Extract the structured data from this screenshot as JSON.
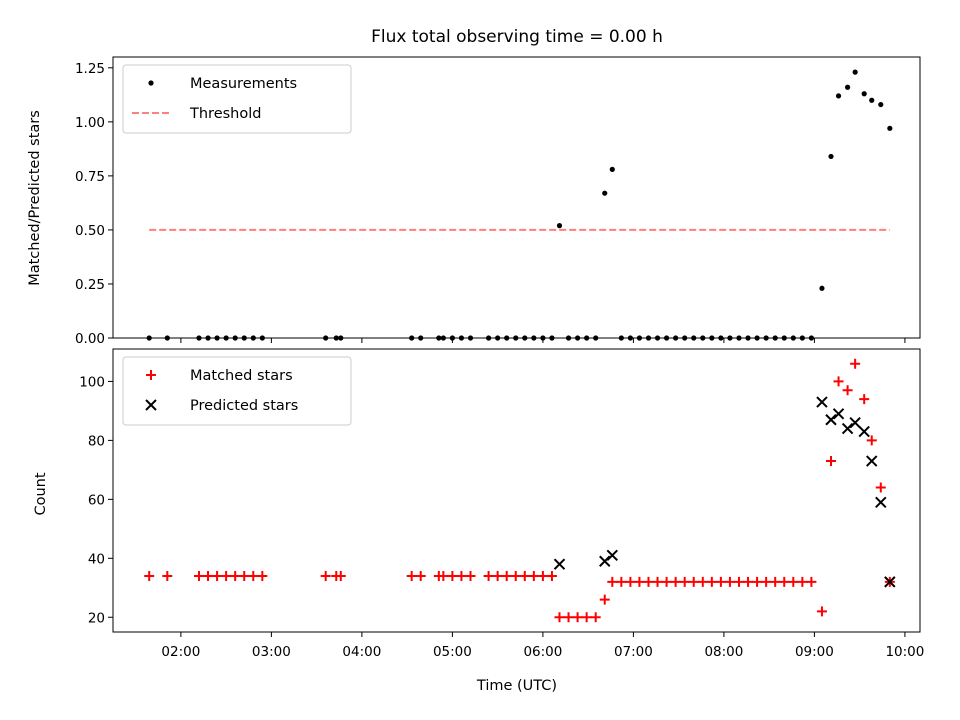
{
  "chart_data": [
    {
      "type": "scatter",
      "title": "Flux total observing time = 0.00 h",
      "xlabel": "",
      "ylabel": "Matched/Predicted stars",
      "x_unit": "time (UTC)",
      "xlim": [
        "01:15",
        "10:10"
      ],
      "ylim": [
        0,
        1.3
      ],
      "yticks": [
        0.0,
        0.25,
        0.5,
        0.75,
        1.0,
        1.25
      ],
      "ytick_labels": [
        "0.00",
        "0.25",
        "0.50",
        "0.75",
        "1.00",
        "1.25"
      ],
      "xticks": [
        "02:00",
        "03:00",
        "04:00",
        "05:00",
        "06:00",
        "07:00",
        "08:00",
        "09:00",
        "10:00"
      ],
      "grid": false,
      "legend": "top-left",
      "series": [
        {
          "name": "Measurements",
          "style": "dot",
          "color": "#000000",
          "points": [
            [
              "01:39",
              0
            ],
            [
              "01:51",
              0
            ],
            [
              "02:12",
              0
            ],
            [
              "02:18",
              0
            ],
            [
              "02:24",
              0
            ],
            [
              "02:30",
              0
            ],
            [
              "02:36",
              0
            ],
            [
              "02:42",
              0
            ],
            [
              "02:48",
              0
            ],
            [
              "02:54",
              0
            ],
            [
              "03:36",
              0
            ],
            [
              "03:43",
              0
            ],
            [
              "03:46",
              0
            ],
            [
              "04:33",
              0
            ],
            [
              "04:39",
              0
            ],
            [
              "04:51",
              0
            ],
            [
              "04:54",
              0
            ],
            [
              "05:00",
              0
            ],
            [
              "05:06",
              0
            ],
            [
              "05:12",
              0
            ],
            [
              "05:24",
              0
            ],
            [
              "05:30",
              0
            ],
            [
              "05:36",
              0
            ],
            [
              "05:42",
              0
            ],
            [
              "05:48",
              0
            ],
            [
              "05:54",
              0
            ],
            [
              "06:00",
              0
            ],
            [
              "06:06",
              0
            ],
            [
              "06:11",
              0.52
            ],
            [
              "06:17",
              0
            ],
            [
              "06:23",
              0
            ],
            [
              "06:29",
              0
            ],
            [
              "06:35",
              0
            ],
            [
              "06:41",
              0.67
            ],
            [
              "06:46",
              0.78
            ],
            [
              "06:52",
              0
            ],
            [
              "06:58",
              0
            ],
            [
              "07:04",
              0
            ],
            [
              "07:10",
              0
            ],
            [
              "07:16",
              0
            ],
            [
              "07:22",
              0
            ],
            [
              "07:28",
              0
            ],
            [
              "07:34",
              0
            ],
            [
              "07:40",
              0
            ],
            [
              "07:46",
              0
            ],
            [
              "07:52",
              0
            ],
            [
              "07:58",
              0
            ],
            [
              "08:04",
              0
            ],
            [
              "08:10",
              0
            ],
            [
              "08:16",
              0
            ],
            [
              "08:22",
              0
            ],
            [
              "08:28",
              0
            ],
            [
              "08:34",
              0
            ],
            [
              "08:40",
              0
            ],
            [
              "08:46",
              0
            ],
            [
              "08:52",
              0
            ],
            [
              "08:58",
              0
            ],
            [
              "09:05",
              0.23
            ],
            [
              "09:11",
              0.84
            ],
            [
              "09:16",
              1.12
            ],
            [
              "09:22",
              1.16
            ],
            [
              "09:27",
              1.23
            ],
            [
              "09:33",
              1.13
            ],
            [
              "09:38",
              1.1
            ],
            [
              "09:44",
              1.08
            ],
            [
              "09:50",
              0.97
            ]
          ]
        },
        {
          "name": "Threshold",
          "style": "dashed-line",
          "color": "#ff7f7f",
          "points": [
            [
              "01:39",
              0.5
            ],
            [
              "09:50",
              0.5
            ]
          ]
        }
      ]
    },
    {
      "type": "scatter",
      "title": "",
      "xlabel": "Time (UTC)",
      "ylabel": "Count",
      "x_unit": "time (UTC)",
      "xlim": [
        "01:15",
        "10:10"
      ],
      "ylim": [
        15,
        111
      ],
      "yticks": [
        20,
        40,
        60,
        80,
        100
      ],
      "ytick_labels": [
        "20",
        "40",
        "60",
        "80",
        "100"
      ],
      "xticks": [
        "02:00",
        "03:00",
        "04:00",
        "05:00",
        "06:00",
        "07:00",
        "08:00",
        "09:00",
        "10:00"
      ],
      "xtick_labels": [
        "02:00",
        "03:00",
        "04:00",
        "05:00",
        "06:00",
        "07:00",
        "08:00",
        "09:00",
        "10:00"
      ],
      "grid": false,
      "legend": "top-left",
      "series": [
        {
          "name": "Matched stars",
          "marker": "plus",
          "color": "#ff0000",
          "points": [
            [
              "01:39",
              34
            ],
            [
              "01:51",
              34
            ],
            [
              "02:12",
              34
            ],
            [
              "02:18",
              34
            ],
            [
              "02:24",
              34
            ],
            [
              "02:30",
              34
            ],
            [
              "02:36",
              34
            ],
            [
              "02:42",
              34
            ],
            [
              "02:48",
              34
            ],
            [
              "02:54",
              34
            ],
            [
              "03:36",
              34
            ],
            [
              "03:43",
              34
            ],
            [
              "03:46",
              34
            ],
            [
              "04:33",
              34
            ],
            [
              "04:39",
              34
            ],
            [
              "04:51",
              34
            ],
            [
              "04:54",
              34
            ],
            [
              "05:00",
              34
            ],
            [
              "05:06",
              34
            ],
            [
              "05:12",
              34
            ],
            [
              "05:24",
              34
            ],
            [
              "05:30",
              34
            ],
            [
              "05:36",
              34
            ],
            [
              "05:42",
              34
            ],
            [
              "05:48",
              34
            ],
            [
              "05:54",
              34
            ],
            [
              "06:00",
              34
            ],
            [
              "06:06",
              34
            ],
            [
              "06:11",
              20
            ],
            [
              "06:17",
              20
            ],
            [
              "06:23",
              20
            ],
            [
              "06:29",
              20
            ],
            [
              "06:35",
              20
            ],
            [
              "06:41",
              26
            ],
            [
              "06:46",
              32
            ],
            [
              "06:52",
              32
            ],
            [
              "06:58",
              32
            ],
            [
              "07:04",
              32
            ],
            [
              "07:10",
              32
            ],
            [
              "07:16",
              32
            ],
            [
              "07:22",
              32
            ],
            [
              "07:28",
              32
            ],
            [
              "07:34",
              32
            ],
            [
              "07:40",
              32
            ],
            [
              "07:46",
              32
            ],
            [
              "07:52",
              32
            ],
            [
              "07:58",
              32
            ],
            [
              "08:04",
              32
            ],
            [
              "08:10",
              32
            ],
            [
              "08:16",
              32
            ],
            [
              "08:22",
              32
            ],
            [
              "08:28",
              32
            ],
            [
              "08:34",
              32
            ],
            [
              "08:40",
              32
            ],
            [
              "08:46",
              32
            ],
            [
              "08:52",
              32
            ],
            [
              "08:58",
              32
            ],
            [
              "09:05",
              22
            ],
            [
              "09:11",
              73
            ],
            [
              "09:16",
              100
            ],
            [
              "09:22",
              97
            ],
            [
              "09:27",
              106
            ],
            [
              "09:33",
              94
            ],
            [
              "09:38",
              80
            ],
            [
              "09:44",
              64
            ],
            [
              "09:50",
              32
            ]
          ]
        },
        {
          "name": "Predicted stars",
          "marker": "x",
          "color": "#000000",
          "points": [
            [
              "06:11",
              38
            ],
            [
              "06:41",
              39
            ],
            [
              "06:46",
              41
            ],
            [
              "09:05",
              93
            ],
            [
              "09:11",
              87
            ],
            [
              "09:16",
              89
            ],
            [
              "09:22",
              84
            ],
            [
              "09:27",
              86
            ],
            [
              "09:33",
              83
            ],
            [
              "09:38",
              73
            ],
            [
              "09:44",
              59
            ],
            [
              "09:50",
              32
            ]
          ]
        }
      ]
    }
  ]
}
